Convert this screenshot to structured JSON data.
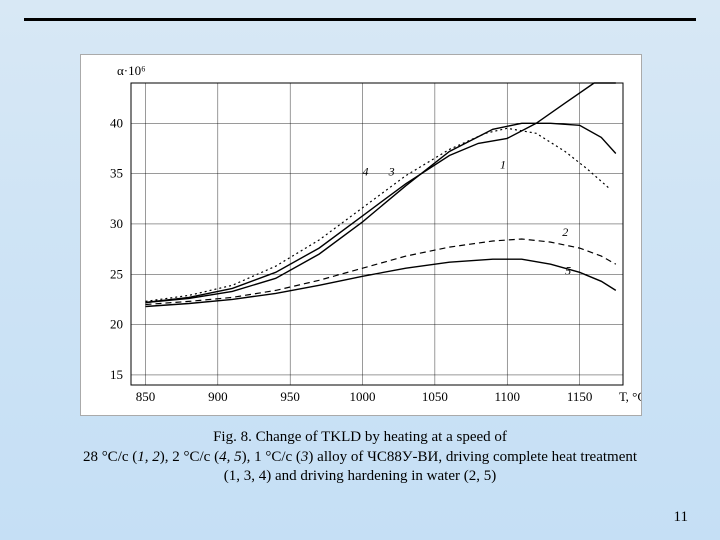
{
  "page_number": "11",
  "caption_line1": "Fig. 8. Change of TKLD by heating at a speed of",
  "caption_line2": "28 °С/с (<i>1, 2</i>), 2 °С/с (<i>4, 5</i>), 1 °С/с (<i>3</i>) alloy of ЧС88У‑ВИ, driving complete heat treatment",
  "caption_line3": "(1, 3, 4) and driving hardening in water (2, 5)",
  "chart": {
    "type": "line",
    "y_axis_label": "α·10⁶",
    "x_axis_label": "Т, °С",
    "background_color": "#ffffff",
    "plot_border_color": "#000000",
    "grid_color": "#000000",
    "tick_fontsize": 13,
    "x_ticks": [
      850,
      900,
      950,
      1000,
      1050,
      1100,
      1150
    ],
    "y_ticks": [
      15,
      20,
      25,
      30,
      35,
      40
    ],
    "xlim": [
      840,
      1180
    ],
    "ylim": [
      14,
      44
    ],
    "series": [
      {
        "id": "1",
        "label": "1",
        "style": "solid",
        "points": [
          [
            850,
            22.2
          ],
          [
            880,
            22.6
          ],
          [
            910,
            23.3
          ],
          [
            940,
            24.6
          ],
          [
            970,
            27.0
          ],
          [
            1000,
            30.2
          ],
          [
            1030,
            33.8
          ],
          [
            1060,
            37.2
          ],
          [
            1090,
            39.4
          ],
          [
            1110,
            40.0
          ],
          [
            1130,
            40.0
          ],
          [
            1150,
            39.8
          ],
          [
            1165,
            38.6
          ],
          [
            1175,
            37.0
          ]
        ],
        "label_xy": [
          1095,
          35.5
        ]
      },
      {
        "id": "2",
        "label": "2",
        "style": "dashed",
        "points": [
          [
            850,
            22.0
          ],
          [
            880,
            22.3
          ],
          [
            910,
            22.7
          ],
          [
            940,
            23.4
          ],
          [
            970,
            24.4
          ],
          [
            1000,
            25.6
          ],
          [
            1030,
            26.8
          ],
          [
            1060,
            27.7
          ],
          [
            1090,
            28.3
          ],
          [
            1110,
            28.5
          ],
          [
            1130,
            28.2
          ],
          [
            1150,
            27.6
          ],
          [
            1165,
            26.8
          ],
          [
            1175,
            26.0
          ]
        ],
        "label_xy": [
          1138,
          28.8
        ]
      },
      {
        "id": "3",
        "label": "3",
        "style": "solid",
        "points": [
          [
            850,
            22.2
          ],
          [
            880,
            22.7
          ],
          [
            910,
            23.6
          ],
          [
            940,
            25.2
          ],
          [
            970,
            27.6
          ],
          [
            1000,
            30.8
          ],
          [
            1030,
            34.0
          ],
          [
            1060,
            36.8
          ],
          [
            1080,
            38.0
          ],
          [
            1100,
            38.5
          ],
          [
            1120,
            40.0
          ],
          [
            1140,
            42.0
          ],
          [
            1160,
            44.0
          ],
          [
            1175,
            45.5
          ]
        ],
        "label_xy": [
          1018,
          34.8
        ]
      },
      {
        "id": "4",
        "label": "4",
        "style": "dotted",
        "points": [
          [
            850,
            22.3
          ],
          [
            880,
            22.9
          ],
          [
            910,
            23.9
          ],
          [
            940,
            25.8
          ],
          [
            970,
            28.4
          ],
          [
            1000,
            31.6
          ],
          [
            1030,
            34.8
          ],
          [
            1060,
            37.4
          ],
          [
            1085,
            39.0
          ],
          [
            1100,
            39.5
          ],
          [
            1120,
            39.0
          ],
          [
            1140,
            37.2
          ],
          [
            1155,
            35.5
          ],
          [
            1170,
            33.6
          ]
        ],
        "label_xy": [
          1000,
          34.8
        ]
      },
      {
        "id": "5",
        "label": "5",
        "style": "solid",
        "points": [
          [
            850,
            21.8
          ],
          [
            880,
            22.1
          ],
          [
            910,
            22.5
          ],
          [
            940,
            23.1
          ],
          [
            970,
            23.9
          ],
          [
            1000,
            24.8
          ],
          [
            1030,
            25.6
          ],
          [
            1060,
            26.2
          ],
          [
            1090,
            26.5
          ],
          [
            1110,
            26.5
          ],
          [
            1130,
            26.0
          ],
          [
            1150,
            25.2
          ],
          [
            1165,
            24.3
          ],
          [
            1175,
            23.4
          ]
        ],
        "label_xy": [
          1140,
          25.0
        ]
      }
    ]
  }
}
